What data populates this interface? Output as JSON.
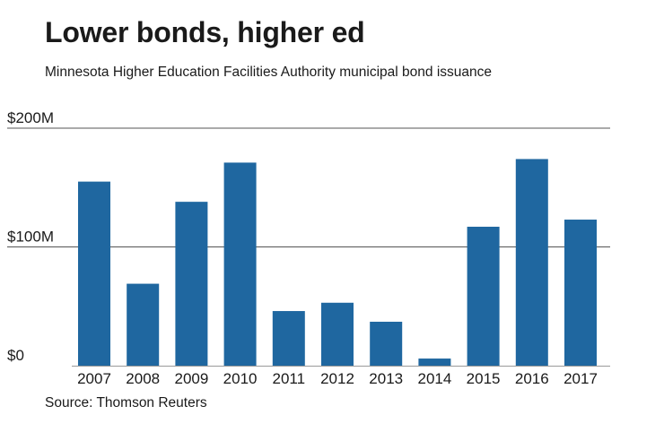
{
  "header": {
    "title": "Lower bonds, higher ed",
    "subtitle": "Minnesota Higher Education Facilities Authority municipal bond issuance"
  },
  "footer": {
    "source": "Source: Thomson Reuters"
  },
  "colors": {
    "bar": "#1f67a0",
    "grid": "#555555",
    "baseline": "#9a9a9a",
    "text": "#1a1a1a"
  },
  "chart_data": {
    "type": "bar",
    "title": "Lower bonds, higher ed",
    "subtitle": "Minnesota Higher Education Facilities Authority municipal bond issuance",
    "xlabel": "",
    "ylabel": "",
    "unit": "$M",
    "categories": [
      "2007",
      "2008",
      "2009",
      "2010",
      "2011",
      "2012",
      "2013",
      "2014",
      "2015",
      "2016",
      "2017"
    ],
    "values": [
      155,
      69,
      138,
      171,
      46,
      53,
      37,
      6,
      117,
      174,
      123
    ],
    "ylim": [
      0,
      200
    ],
    "yticks": [
      {
        "value": 0,
        "label": "$0"
      },
      {
        "value": 100,
        "label": "$100M"
      },
      {
        "value": 200,
        "label": "$200M"
      }
    ],
    "grid": true,
    "legend": "none"
  }
}
